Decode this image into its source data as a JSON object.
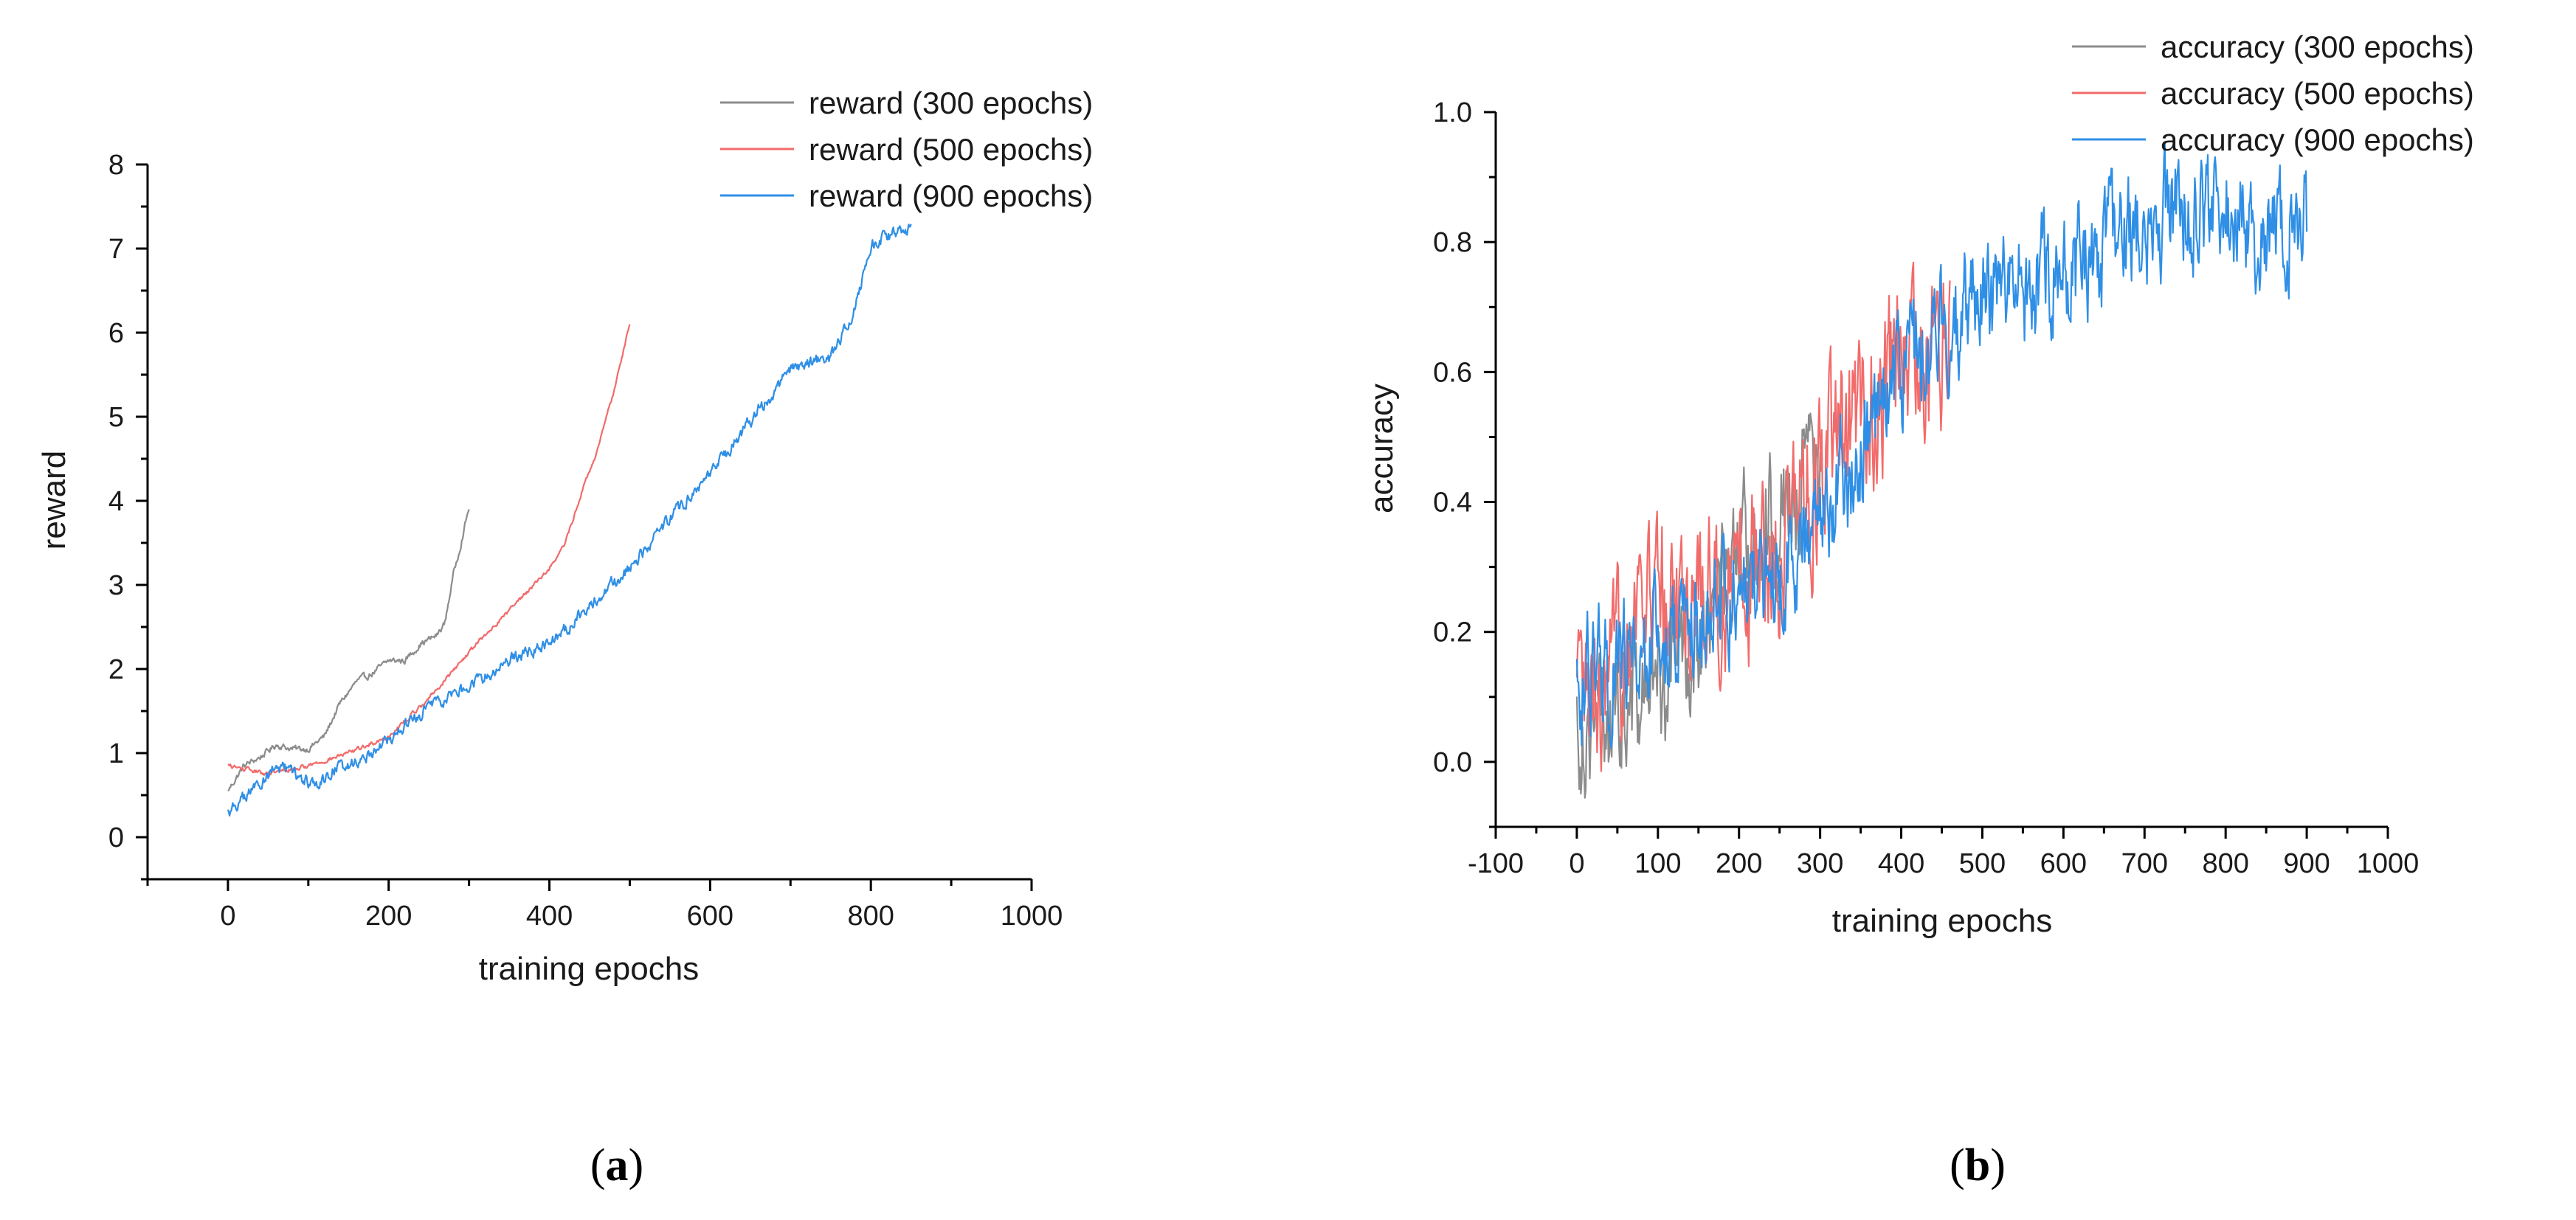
{
  "colors": {
    "series_300": "#8c8c8c",
    "series_500": "#f26b6b",
    "series_900": "#2f8fe6"
  },
  "chart_data": [
    {
      "type": "line",
      "panel_label": {
        "open": "(",
        "letter": "a",
        "close": ")"
      },
      "title": "",
      "xlabel": "training epochs",
      "ylabel": "reward",
      "xlim": [
        -100,
        1000
      ],
      "ylim": [
        -0.5,
        8
      ],
      "x_ticks": [
        0,
        200,
        400,
        600,
        800,
        1000
      ],
      "x_tick_labels": [
        "0",
        "200",
        "400",
        "600",
        "800",
        "1000"
      ],
      "y_ticks": [
        0,
        1,
        2,
        3,
        4,
        5,
        6,
        7,
        8
      ],
      "y_tick_labels": [
        "0",
        "1",
        "2",
        "3",
        "4",
        "5",
        "6",
        "7",
        "8"
      ],
      "legend_position": "top-right",
      "series": [
        {
          "name": "reward (300 epochs)",
          "color_key": "series_300",
          "noise": 0.03,
          "points": [
            [
              0,
              0.55
            ],
            [
              20,
              0.85
            ],
            [
              40,
              0.95
            ],
            [
              60,
              1.1
            ],
            [
              80,
              1.05
            ],
            [
              100,
              1.05
            ],
            [
              120,
              1.2
            ],
            [
              140,
              1.6
            ],
            [
              160,
              1.85
            ],
            [
              180,
              1.95
            ],
            [
              200,
              2.1
            ],
            [
              220,
              2.1
            ],
            [
              240,
              2.3
            ],
            [
              260,
              2.4
            ],
            [
              270,
              2.55
            ],
            [
              280,
              3.1
            ],
            [
              290,
              3.5
            ],
            [
              300,
              3.92
            ]
          ]
        },
        {
          "name": "reward (500 epochs)",
          "color_key": "series_500",
          "noise": 0.02,
          "points": [
            [
              0,
              0.85
            ],
            [
              50,
              0.75
            ],
            [
              100,
              0.85
            ],
            [
              150,
              1.0
            ],
            [
              200,
              1.2
            ],
            [
              250,
              1.65
            ],
            [
              300,
              2.2
            ],
            [
              350,
              2.7
            ],
            [
              400,
              3.2
            ],
            [
              420,
              3.5
            ],
            [
              440,
              4.1
            ],
            [
              460,
              4.6
            ],
            [
              480,
              5.3
            ],
            [
              500,
              6.12
            ]
          ]
        },
        {
          "name": "reward (900 epochs)",
          "color_key": "series_900",
          "noise": 0.06,
          "points": [
            [
              0,
              0.3
            ],
            [
              30,
              0.55
            ],
            [
              60,
              0.85
            ],
            [
              90,
              0.7
            ],
            [
              110,
              0.6
            ],
            [
              130,
              0.8
            ],
            [
              160,
              0.9
            ],
            [
              200,
              1.15
            ],
            [
              250,
              1.55
            ],
            [
              300,
              1.8
            ],
            [
              350,
              2.1
            ],
            [
              400,
              2.3
            ],
            [
              450,
              2.75
            ],
            [
              500,
              3.2
            ],
            [
              550,
              3.8
            ],
            [
              600,
              4.3
            ],
            [
              650,
              4.95
            ],
            [
              700,
              5.55
            ],
            [
              750,
              5.7
            ],
            [
              780,
              6.3
            ],
            [
              800,
              7.05
            ],
            [
              820,
              7.15
            ],
            [
              850,
              7.25
            ]
          ]
        }
      ]
    },
    {
      "type": "line",
      "panel_label": {
        "open": "(",
        "letter": "b",
        "close": ")"
      },
      "title": "",
      "xlabel": "training epochs",
      "ylabel": "accuracy",
      "xlim": [
        -100,
        1000
      ],
      "ylim": [
        -0.1,
        1.0
      ],
      "x_ticks": [
        -100,
        0,
        100,
        200,
        300,
        400,
        500,
        600,
        700,
        800,
        900,
        1000
      ],
      "x_tick_labels": [
        "-100",
        "0",
        "100",
        "200",
        "300",
        "400",
        "500",
        "600",
        "700",
        "800",
        "900",
        "1000"
      ],
      "y_ticks": [
        0.0,
        0.2,
        0.4,
        0.6,
        0.8,
        1.0
      ],
      "y_tick_labels": [
        "0.0",
        "0.2",
        "0.4",
        "0.6",
        "0.8",
        "1.0"
      ],
      "legend_position": "top-right",
      "series": [
        {
          "name": "accuracy (300 epochs)",
          "color_key": "series_300",
          "noise": 0.05,
          "points": [
            [
              0,
              0.06
            ],
            [
              50,
              0.08
            ],
            [
              100,
              0.12
            ],
            [
              150,
              0.2
            ],
            [
              200,
              0.3
            ],
            [
              250,
              0.4
            ],
            [
              300,
              0.45
            ]
          ]
        },
        {
          "name": "accuracy (500 epochs)",
          "color_key": "series_500",
          "noise": 0.06,
          "points": [
            [
              0,
              0.08
            ],
            [
              40,
              0.06
            ],
            [
              70,
              0.28
            ],
            [
              100,
              0.25
            ],
            [
              150,
              0.26
            ],
            [
              200,
              0.28
            ],
            [
              250,
              0.35
            ],
            [
              300,
              0.45
            ],
            [
              350,
              0.52
            ],
            [
              400,
              0.6
            ],
            [
              450,
              0.65
            ],
            [
              460,
              0.64
            ]
          ]
        },
        {
          "name": "accuracy (900 epochs)",
          "color_key": "series_900",
          "noise": 0.045,
          "points": [
            [
              0,
              0.12
            ],
            [
              50,
              0.15
            ],
            [
              100,
              0.18
            ],
            [
              150,
              0.22
            ],
            [
              200,
              0.26
            ],
            [
              250,
              0.3
            ],
            [
              300,
              0.38
            ],
            [
              350,
              0.48
            ],
            [
              400,
              0.6
            ],
            [
              450,
              0.68
            ],
            [
              500,
              0.7
            ],
            [
              550,
              0.73
            ],
            [
              600,
              0.75
            ],
            [
              650,
              0.78
            ],
            [
              700,
              0.82
            ],
            [
              750,
              0.85
            ],
            [
              800,
              0.84
            ],
            [
              850,
              0.82
            ],
            [
              900,
              0.84
            ]
          ]
        }
      ]
    }
  ]
}
